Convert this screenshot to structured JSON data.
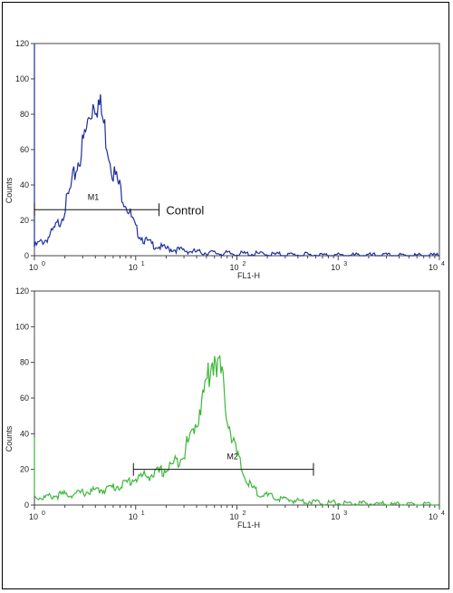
{
  "chart_data": [
    {
      "type": "line",
      "x_scale": "log",
      "xlim": [
        1,
        10000
      ],
      "ylim": [
        0,
        120
      ],
      "xlabel": "FL1-H",
      "ylabel": "Counts",
      "x_ticks": [
        {
          "base": "10",
          "exp": "0"
        },
        {
          "base": "10",
          "exp": "1"
        },
        {
          "base": "10",
          "exp": "2"
        },
        {
          "base": "10",
          "exp": "3"
        },
        {
          "base": "10",
          "exp": "4"
        }
      ],
      "y_ticks": [
        "0",
        "20",
        "40",
        "60",
        "80",
        "100",
        "120"
      ],
      "series": [
        {
          "color": "#1f2f9e",
          "x": [
            1,
            1.1,
            1.3,
            1.5,
            1.8,
            2,
            2.3,
            2.6,
            3,
            3.3,
            3.6,
            3.9,
            4.2,
            4.6,
            5,
            5.5,
            6,
            7,
            8,
            9,
            10,
            12,
            15,
            20,
            30,
            40,
            60,
            100,
            150,
            300,
            1000,
            10000
          ],
          "y": [
            5,
            7,
            9,
            13,
            20,
            27,
            38,
            50,
            62,
            72,
            82,
            90,
            88,
            80,
            70,
            58,
            48,
            38,
            30,
            22,
            15,
            9,
            6,
            4,
            3,
            2,
            1.5,
            1,
            1,
            0.5,
            0.2,
            0
          ]
        }
      ],
      "marker": {
        "label": "M1",
        "x_start": 1,
        "x_end": 17,
        "y": 26
      },
      "annotation": {
        "text": "Control",
        "x": 20,
        "y": 26
      }
    },
    {
      "type": "line",
      "x_scale": "log",
      "xlim": [
        1,
        10000
      ],
      "ylim": [
        0,
        120
      ],
      "xlabel": "FL1-H",
      "ylabel": "Counts",
      "x_ticks": [
        {
          "base": "10",
          "exp": "0"
        },
        {
          "base": "10",
          "exp": "1"
        },
        {
          "base": "10",
          "exp": "2"
        },
        {
          "base": "10",
          "exp": "3"
        },
        {
          "base": "10",
          "exp": "4"
        }
      ],
      "y_ticks": [
        "0",
        "20",
        "40",
        "60",
        "80",
        "100",
        "120"
      ],
      "series": [
        {
          "color": "#3db83a",
          "x": [
            1,
            1.2,
            1.5,
            2,
            2.5,
            3,
            4,
            5,
            6,
            7,
            8,
            9,
            10,
            12,
            14,
            17,
            20,
            25,
            30,
            35,
            40,
            45,
            50,
            55,
            60,
            65,
            70,
            75,
            80,
            90,
            100,
            115,
            130,
            150,
            200,
            300,
            500,
            1000,
            3000,
            10000
          ],
          "y": [
            5,
            4,
            5,
            6,
            6,
            7,
            8,
            9,
            10,
            11,
            12,
            14,
            15,
            16,
            17,
            18,
            20,
            24,
            30,
            38,
            48,
            58,
            68,
            78,
            84,
            80,
            72,
            62,
            52,
            38,
            28,
            18,
            12,
            8,
            5,
            3,
            2,
            1,
            0.5,
            0
          ]
        }
      ],
      "marker": {
        "label": "M2",
        "x_start": 9.5,
        "x_end": 570,
        "y": 20
      }
    }
  ]
}
